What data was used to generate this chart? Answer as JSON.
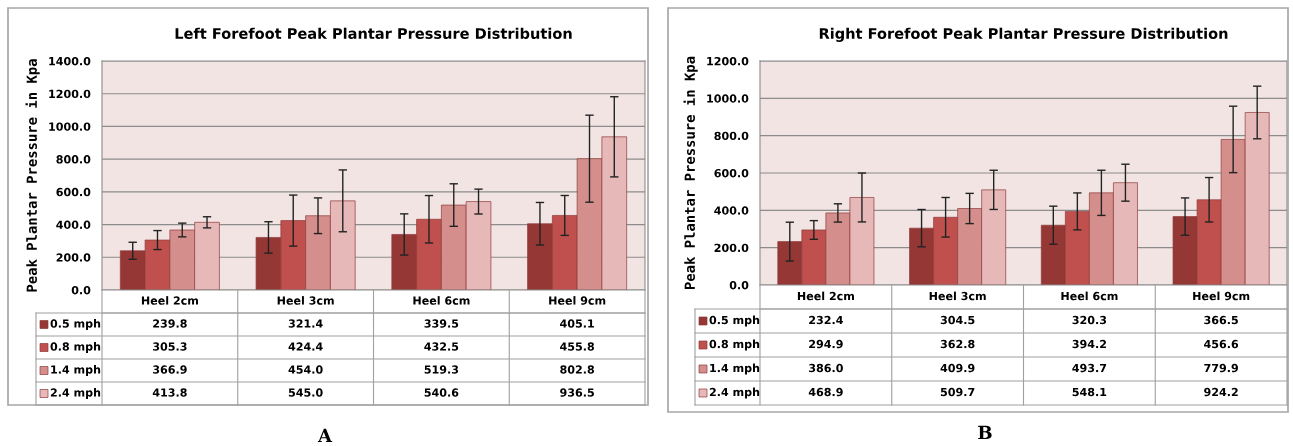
{
  "chart_data": [
    {
      "type": "bar",
      "title": "Left Forefoot Peak Plantar Pressure Distribution",
      "ylabel": "Peak Plantar Pressure in Kpa",
      "categories": [
        "Heel 2cm",
        "Heel 3cm",
        "Heel 6cm",
        "Heel 9cm"
      ],
      "series": [
        {
          "name": "0.5 mph",
          "color": "#953735",
          "values": [
            239.8,
            321.4,
            339.5,
            405.1
          ],
          "value_labels": [
            "239.8",
            "321.4",
            "339.5",
            "405.1"
          ],
          "errors": [
            52,
            96,
            126,
            130
          ]
        },
        {
          "name": "0.8 mph",
          "color": "#c0504d",
          "values": [
            305.3,
            424.4,
            432.5,
            455.8
          ],
          "value_labels": [
            "305.3",
            "424.4",
            "432.5",
            "455.8"
          ],
          "errors": [
            58,
            156,
            145,
            122
          ]
        },
        {
          "name": "1.4 mph",
          "color": "#d48e8c",
          "values": [
            366.9,
            454.0,
            519.3,
            802.8
          ],
          "value_labels": [
            "366.9",
            "454.0",
            "519.3",
            "802.8"
          ],
          "errors": [
            42,
            109,
            130,
            266
          ]
        },
        {
          "name": "2.4 mph",
          "color": "#e6b9b8",
          "values": [
            413.8,
            545.0,
            540.6,
            936.5
          ],
          "value_labels": [
            "413.8",
            "545.0",
            "540.6",
            "936.5"
          ],
          "errors": [
            34,
            189,
            76,
            245
          ]
        }
      ],
      "ylim": [
        0,
        1400
      ],
      "yticks": [
        {
          "value": 0,
          "label": "0.0"
        },
        {
          "value": 200,
          "label": "200.0"
        },
        {
          "value": 400,
          "label": "400.0"
        },
        {
          "value": 600,
          "label": "600.0"
        },
        {
          "value": 800,
          "label": "800.0"
        },
        {
          "value": 1000,
          "label": "1000.0"
        },
        {
          "value": 1200,
          "label": "1200.0"
        },
        {
          "value": 1400,
          "label": "1400.0"
        }
      ],
      "grid": "y",
      "legend": "bottom left",
      "annotations": [
        "A"
      ]
    },
    {
      "type": "bar",
      "title": "Right Forefoot Peak Plantar Pressure Distribution",
      "ylabel": "Peak Plantar Pressure in Kpa",
      "categories": [
        "Heel 2cm",
        "Heel 3cm",
        "Heel 6cm",
        "Heel 9cm"
      ],
      "series": [
        {
          "name": "0.5 mph",
          "color": "#953735",
          "values": [
            232.4,
            304.5,
            320.3,
            366.5
          ],
          "value_labels": [
            "232.4",
            "304.5",
            "320.3",
            "366.5"
          ],
          "errors": [
            104,
            100,
            102,
            100
          ]
        },
        {
          "name": "0.8 mph",
          "color": "#c0504d",
          "values": [
            294.9,
            362.8,
            394.2,
            456.6
          ],
          "value_labels": [
            "294.9",
            "362.8",
            "394.2",
            "456.6"
          ],
          "errors": [
            50,
            106,
            99,
            119
          ]
        },
        {
          "name": "1.4 mph",
          "color": "#d48e8c",
          "values": [
            386.0,
            409.9,
            493.7,
            779.9
          ],
          "value_labels": [
            "386.0",
            "409.9",
            "493.7",
            "779.9"
          ],
          "errors": [
            49,
            81,
            121,
            178
          ]
        },
        {
          "name": "2.4 mph",
          "color": "#e6b9b8",
          "values": [
            468.9,
            509.7,
            548.1,
            924.2
          ],
          "value_labels": [
            "468.9",
            "509.7",
            "548.1",
            "924.2"
          ],
          "errors": [
            131,
            105,
            99,
            141
          ]
        }
      ],
      "ylim": [
        0,
        1200
      ],
      "yticks": [
        {
          "value": 0,
          "label": "0.0"
        },
        {
          "value": 200,
          "label": "200.0"
        },
        {
          "value": 400,
          "label": "400.0"
        },
        {
          "value": 600,
          "label": "600.0"
        },
        {
          "value": 800,
          "label": "800.0"
        },
        {
          "value": 1000,
          "label": "1000.0"
        },
        {
          "value": 1200,
          "label": "1200.0"
        }
      ],
      "grid": "y",
      "legend": "bottom left",
      "annotations": [
        "B"
      ]
    }
  ]
}
